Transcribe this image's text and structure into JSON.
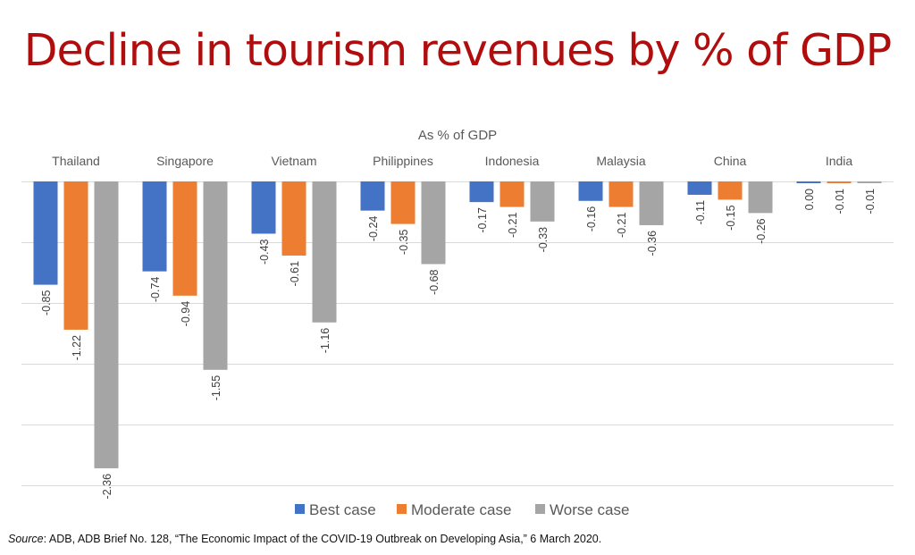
{
  "slide": {
    "title": "Decline in tourism revenues by % of  GDP",
    "source_label": "Source",
    "source_text": ": ADB, ADB Brief No. 128, “The Economic Impact of the COVID-19 Outbreak on Developing Asia,” 6 March 2020."
  },
  "chart_data": {
    "type": "bar",
    "title": "As % of GDP",
    "xlabel": "",
    "ylabel": "",
    "categories": [
      "Thailand",
      "Singapore",
      "Vietnam",
      "Philippines",
      "Indonesia",
      "Malaysia",
      "China",
      "India"
    ],
    "series": [
      {
        "name": "Best case",
        "color": "#4472c4",
        "values": [
          -0.85,
          -0.74,
          -0.43,
          -0.24,
          -0.17,
          -0.16,
          -0.11,
          0.0
        ]
      },
      {
        "name": "Moderate case",
        "color": "#ed7d31",
        "values": [
          -1.22,
          -0.94,
          -0.61,
          -0.35,
          -0.21,
          -0.21,
          -0.15,
          -0.01
        ]
      },
      {
        "name": "Worse case",
        "color": "#a5a5a5",
        "values": [
          -2.36,
          -1.55,
          -1.16,
          -0.68,
          -0.33,
          -0.36,
          -0.26,
          -0.01
        ]
      }
    ],
    "ylim": [
      -2.5,
      0
    ],
    "gridline_step": 0.5,
    "grid": true,
    "category_labels_position": "top",
    "data_labels": "rotated-below-bar",
    "legend_position": "bottom"
  }
}
